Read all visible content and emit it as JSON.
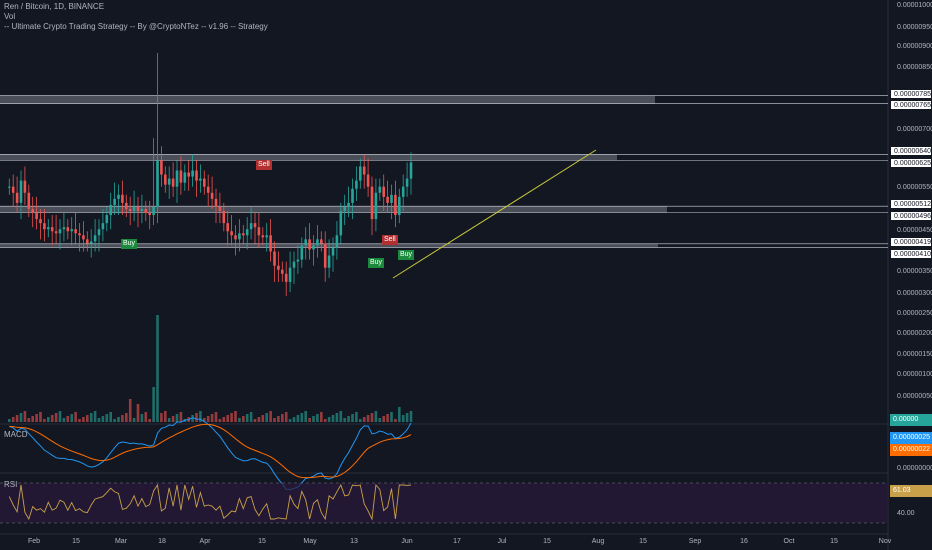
{
  "header": {
    "title": "Ren / Bitcoin, 1D, BINANCE",
    "vol_label": "Vol",
    "strategy_label": "-- Ultimate Crypto Trading Strategy -- By @CryptoNTez -- v1.96 -- Strategy"
  },
  "panes": {
    "macd_label": "MACD",
    "rsi_label": "RSI"
  },
  "price_axis": {
    "ticks": [
      "0.00001000",
      "0.00000950",
      "0.00000900",
      "0.00000850",
      "0.00000700",
      "0.00000550",
      "0.00000450",
      "0.00000350",
      "0.00000300",
      "0.00000250",
      "0.00000200",
      "0.00000150",
      "0.00000100",
      "0.00000050"
    ],
    "zone_tags": [
      "0.00000785",
      "0.00000765",
      "0.00000640",
      "0.00000625",
      "0.00000512",
      "0.00000496",
      "0.00000419",
      "0.00000410"
    ],
    "vol_tag": "0.00000",
    "macd_tags": [
      "0.00000025",
      "0.00000022"
    ],
    "macd_zero_tick": "0.00000000",
    "rsi_tags": [
      "61.03",
      "40.00"
    ]
  },
  "date_axis": [
    "Feb",
    "15",
    "Mar",
    "18",
    "Apr",
    "15",
    "May",
    "13",
    "Jun",
    "17",
    "Jul",
    "15",
    "Aug",
    "15",
    "Sep",
    "16",
    "Oct",
    "15",
    "Nov"
  ],
  "signals": [
    {
      "type": "buy",
      "label": "Buy"
    },
    {
      "type": "sell",
      "label": "Sell"
    },
    {
      "type": "buy",
      "label": "Buy"
    },
    {
      "type": "sell",
      "label": "Sell"
    },
    {
      "type": "buy",
      "label": "Buy"
    }
  ],
  "colors": {
    "background": "#131722",
    "up_candle": "#26a69a",
    "down_candle": "#ef5350",
    "zone": "#787b86",
    "trendline": "#c8c83a",
    "macd_line": "#2196f3",
    "signal_line": "#ff6d00",
    "rsi_line": "#c8a04a",
    "rsi_band": "#2a1a3a"
  },
  "chart_data": {
    "type": "candlestick",
    "symbol": "Ren / Bitcoin",
    "interval": "1D",
    "exchange": "BINANCE",
    "closes": [
      5.6e-06,
      5.45e-06,
      5.2e-06,
      5.75e-06,
      5.45e-06,
      5.05e-06,
      4.95e-06,
      4.8e-06,
      4.7e-06,
      4.55e-06,
      4.6e-06,
      4.5e-06,
      4.45e-06,
      4.55e-06,
      4.6e-06,
      4.5e-06,
      4.55e-06,
      4.45e-06,
      4.4e-06,
      4.3e-06,
      4.2e-06,
      4.25e-06,
      4.4e-06,
      4.55e-06,
      4.7e-06,
      4.9e-06,
      5.15e-06,
      5.3e-06,
      5.4e-06,
      5.2e-06,
      5.05e-06,
      5e-06,
      5.1e-06,
      5e-06,
      5.05e-06,
      4.95e-06,
      4.9e-06,
      5.1e-06,
      6.25e-06,
      5.9e-06,
      5.65e-06,
      5.8e-06,
      5.6e-06,
      6e-06,
      5.7e-06,
      5.95e-06,
      5.85e-06,
      6e-06,
      5.75e-06,
      5.8e-06,
      5.6e-06,
      5.45e-06,
      5.3e-06,
      5.1e-06,
      5e-06,
      4.7e-06,
      4.5e-06,
      4.4e-06,
      4.3e-06,
      4.45e-06,
      4.4e-06,
      4.55e-06,
      4.7e-06,
      4.6e-06,
      4.4e-06,
      4.35e-06,
      4.4e-06,
      4e-06,
      3.65e-06,
      3.55e-06,
      3.45e-06,
      3.25e-06,
      3.6e-06,
      3.75e-06,
      3.8e-06,
      4.15e-06,
      4.3e-06,
      4.05e-06,
      4.15e-06,
      4.3e-06,
      4.2e-06,
      3.6e-06,
      3.9e-06,
      4.1e-06,
      4.4e-06,
      5e-06,
      5.1e-06,
      5.2e-06,
      5.55e-06,
      5.75e-06,
      6.1e-06,
      5.9e-06,
      5.6e-06,
      4.8e-06,
      5.45e-06,
      5.6e-06,
      5.35e-06,
      5.2e-06,
      5.4e-06,
      4.9e-06,
      5.35e-06,
      5.6e-06,
      5.8e-06,
      6.2e-06
    ],
    "volume_max": 2.5e-06,
    "rsi_levels": [
      70,
      30
    ],
    "rsi_last": 61.03
  }
}
